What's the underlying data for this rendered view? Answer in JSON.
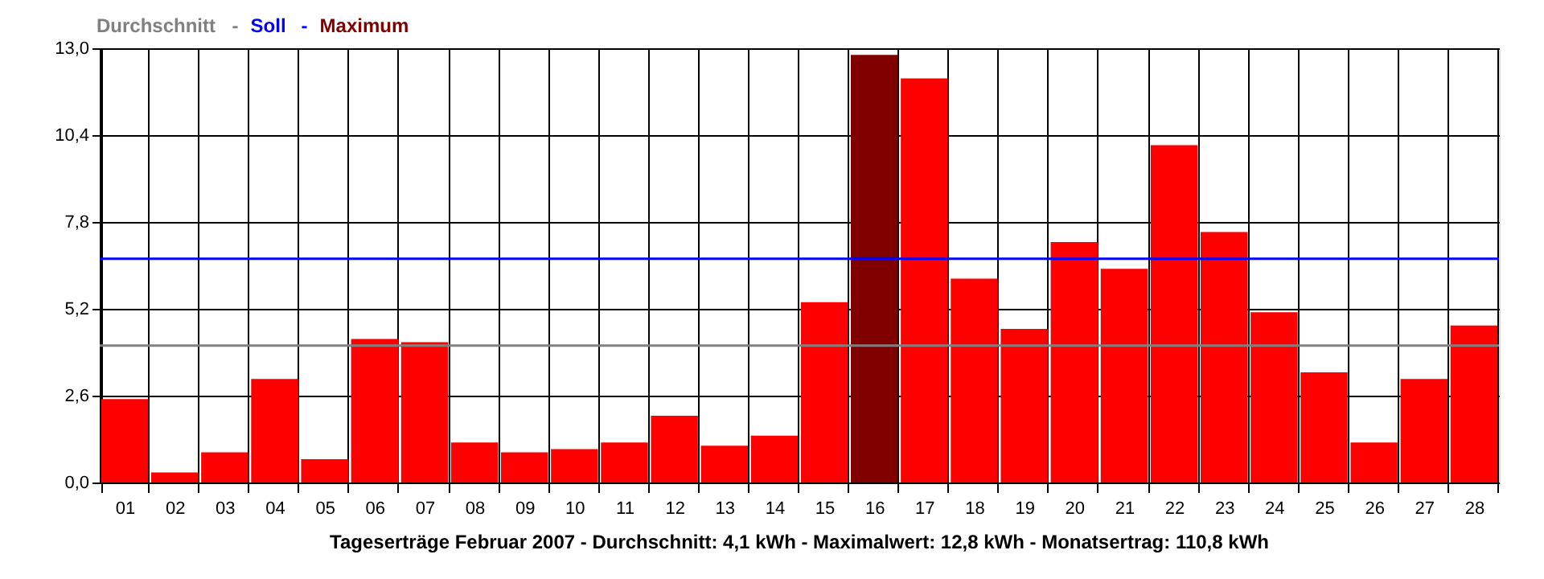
{
  "chart_data": {
    "type": "bar",
    "categories": [
      "01",
      "02",
      "03",
      "04",
      "05",
      "06",
      "07",
      "08",
      "09",
      "10",
      "11",
      "12",
      "13",
      "14",
      "15",
      "16",
      "17",
      "18",
      "19",
      "20",
      "21",
      "22",
      "23",
      "24",
      "25",
      "26",
      "27",
      "28"
    ],
    "values": [
      2.5,
      0.3,
      0.9,
      3.1,
      0.7,
      4.3,
      4.2,
      1.2,
      0.9,
      1.0,
      1.2,
      2.0,
      1.1,
      1.4,
      5.4,
      12.8,
      12.1,
      6.1,
      4.6,
      7.2,
      6.4,
      10.1,
      7.5,
      5.1,
      3.3,
      1.2,
      3.1,
      4.7
    ],
    "colors": [
      "#ff0000",
      "#ff0000",
      "#ff0000",
      "#ff0000",
      "#ff0000",
      "#ff0000",
      "#ff0000",
      "#ff0000",
      "#ff0000",
      "#ff0000",
      "#ff0000",
      "#ff0000",
      "#ff0000",
      "#ff0000",
      "#ff0000",
      "#800000",
      "#ff0000",
      "#ff0000",
      "#ff0000",
      "#ff0000",
      "#ff0000",
      "#ff0000",
      "#ff0000",
      "#ff0000",
      "#ff0000",
      "#ff0000",
      "#ff0000",
      "#ff0000"
    ],
    "ylim": [
      0,
      13
    ],
    "yticks": [
      {
        "value": 0,
        "label": "0,0"
      },
      {
        "value": 2.6,
        "label": "2,6"
      },
      {
        "value": 5.2,
        "label": "5,2"
      },
      {
        "value": 7.8,
        "label": "7,8"
      },
      {
        "value": 10.4,
        "label": "10,4"
      },
      {
        "value": 13,
        "label": "13,0"
      }
    ],
    "grid": true,
    "ref_lines": [
      {
        "axis": "y",
        "value": 4.1,
        "label": "Durchschnitt",
        "color": "#808080"
      },
      {
        "axis": "y",
        "value": 6.7,
        "label": "Soll",
        "color": "#0000ff"
      }
    ],
    "annotations": [
      "-",
      "-",
      "Maximum",
      "Tageserträge Februar 2007 - Durchschnitt: 4,1 kWh - Maximalwert: 12,8 kWh - Monatsertrag: 110,8 kWh"
    ]
  }
}
